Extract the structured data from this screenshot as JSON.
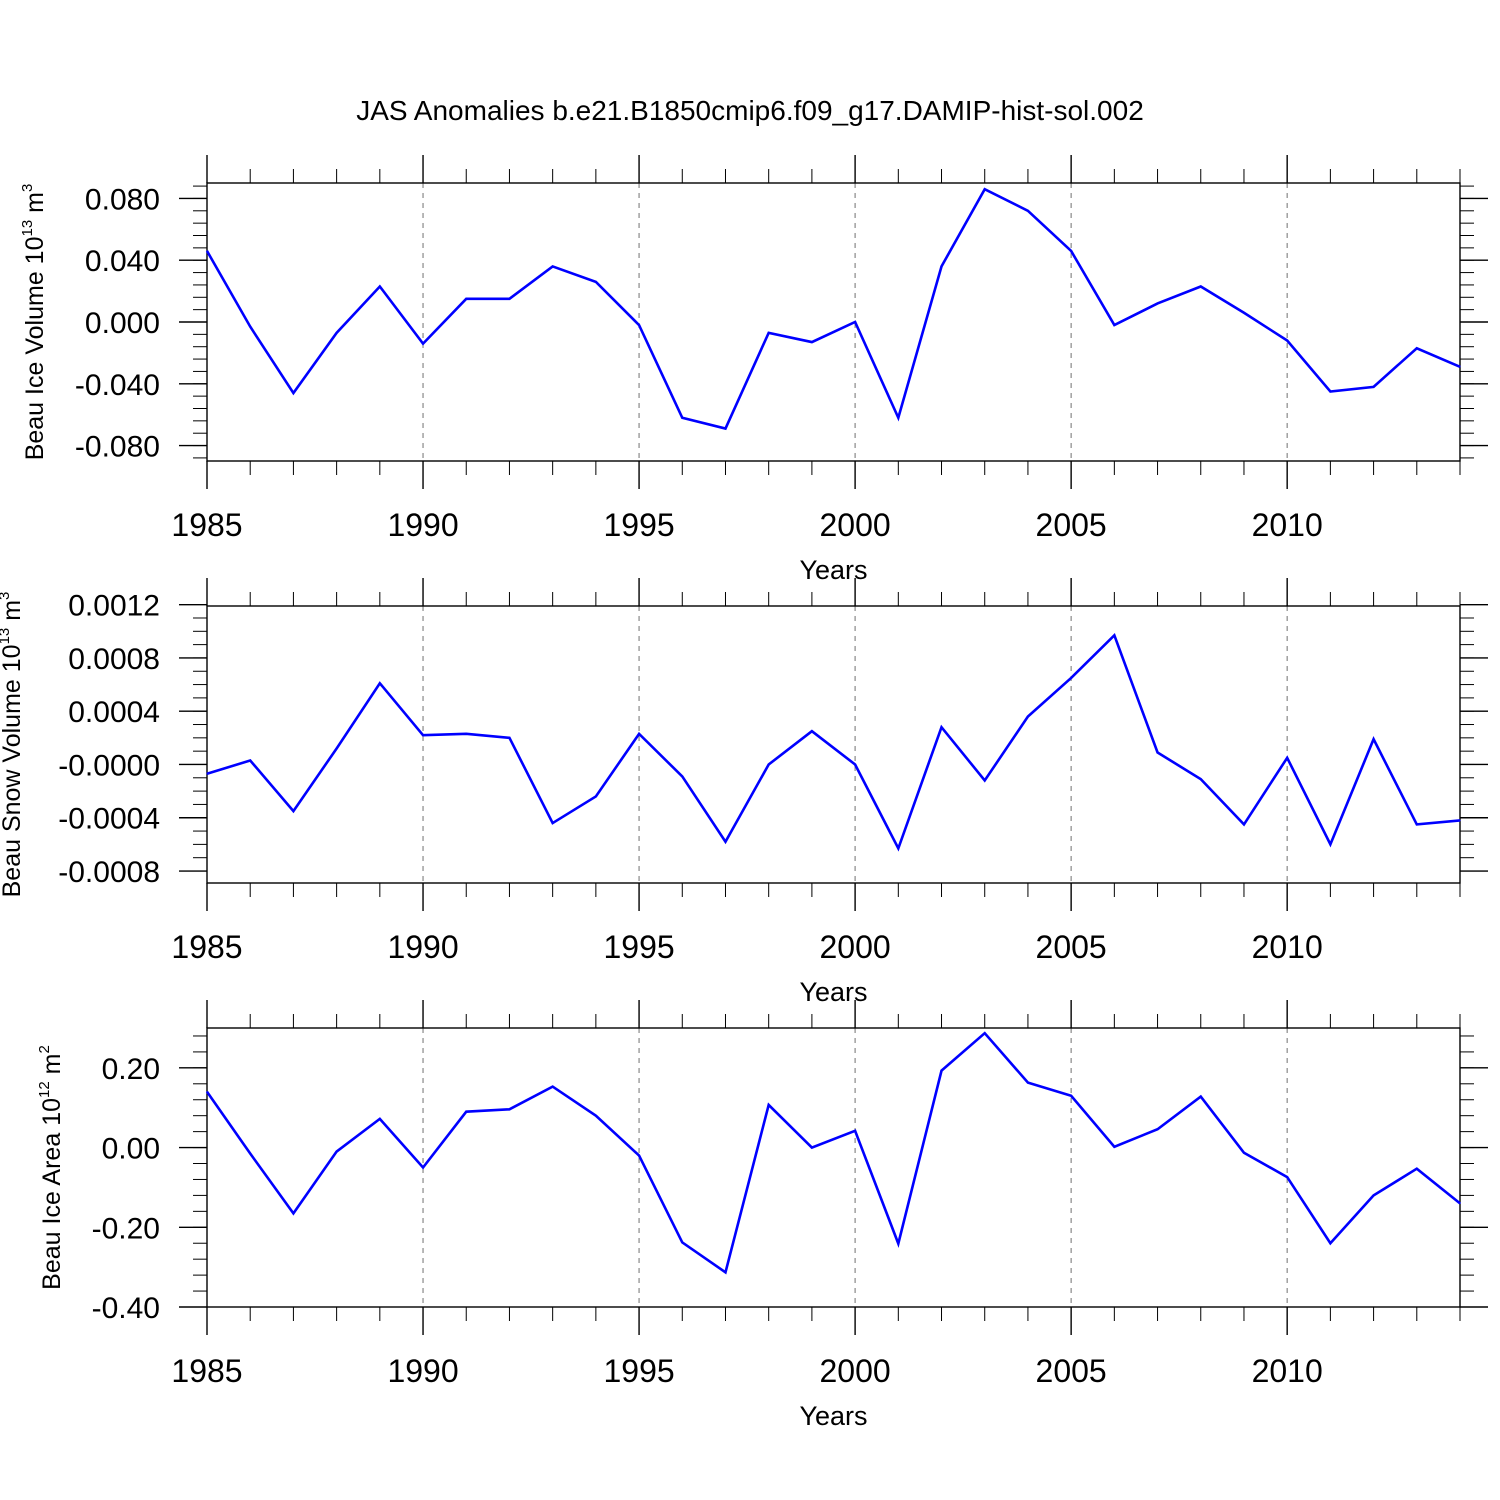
{
  "title": "JAS Anomalies b.e21.B1850cmip6.f09_g17.DAMIP-hist-sol.002",
  "line_color": "#0000ff",
  "chart_data": [
    {
      "type": "line",
      "xlabel": "Years",
      "ylabel": {
        "base": "Beau Ice Volume 10",
        "exp": "13",
        "unit": " m",
        "unit_exp": "3"
      },
      "xlim": [
        1985,
        2014
      ],
      "ylim": [
        -0.09,
        0.09
      ],
      "xticks": [
        1985,
        1990,
        1995,
        2000,
        2005,
        2010
      ],
      "yticks": [
        -0.08,
        -0.04,
        0.0,
        0.04,
        0.08
      ],
      "ytick_labels": [
        "-0.080",
        "-0.040",
        "0.000",
        "0.040",
        "0.080"
      ],
      "yminor_step": 0.008,
      "x": [
        1985,
        1986,
        1987,
        1988,
        1989,
        1990,
        1991,
        1992,
        1993,
        1994,
        1995,
        1996,
        1997,
        1998,
        1999,
        2000,
        2001,
        2002,
        2003,
        2004,
        2005,
        2006,
        2007,
        2008,
        2009,
        2010,
        2011,
        2012,
        2013,
        2014
      ],
      "values": [
        0.046,
        -0.003,
        -0.046,
        -0.007,
        0.023,
        -0.014,
        0.015,
        0.015,
        0.036,
        0.026,
        -0.002,
        -0.062,
        -0.069,
        -0.007,
        -0.013,
        0.0,
        -0.062,
        0.036,
        0.086,
        0.072,
        0.046,
        -0.002,
        0.012,
        0.023,
        0.006,
        -0.012,
        -0.045,
        -0.042,
        -0.017,
        -0.029
      ]
    },
    {
      "type": "line",
      "xlabel": "Years",
      "ylabel": {
        "base": "Beau Snow Volume 10",
        "exp": "13",
        "unit": " m",
        "unit_exp": "3"
      },
      "xlim": [
        1985,
        2014
      ],
      "ylim": [
        -0.00089,
        0.00119
      ],
      "xticks": [
        1985,
        1990,
        1995,
        2000,
        2005,
        2010
      ],
      "yticks": [
        -0.0008,
        -0.0004,
        0.0,
        0.0004,
        0.0008,
        0.0012
      ],
      "ytick_labels": [
        "-0.0008",
        "-0.0004",
        "-0.0000",
        "0.0004",
        "0.0008",
        "0.0012"
      ],
      "yminor_step": 0.0001,
      "x": [
        1985,
        1986,
        1987,
        1988,
        1989,
        1990,
        1991,
        1992,
        1993,
        1994,
        1995,
        1996,
        1997,
        1998,
        1999,
        2000,
        2001,
        2002,
        2003,
        2004,
        2005,
        2006,
        2007,
        2008,
        2009,
        2010,
        2011,
        2012,
        2013,
        2014
      ],
      "values": [
        -7e-05,
        3e-05,
        -0.00035,
        0.00012,
        0.00061,
        0.00022,
        0.00023,
        0.0002,
        -0.00044,
        -0.00024,
        0.00023,
        -9e-05,
        -0.00058,
        0.0,
        0.00025,
        0.0,
        -0.00063,
        0.00028,
        -0.00012,
        0.00036,
        0.00065,
        0.00097,
        9e-05,
        -0.00011,
        -0.00045,
        5e-05,
        -0.0006,
        0.00019,
        -0.00045,
        -0.00042
      ]
    },
    {
      "type": "line",
      "xlabel": "Years",
      "ylabel": {
        "base": "Beau Ice Area 10",
        "exp": "12",
        "unit": " m",
        "unit_exp": "2"
      },
      "xlim": [
        1985,
        2014
      ],
      "ylim": [
        -0.4,
        0.3
      ],
      "xticks": [
        1985,
        1990,
        1995,
        2000,
        2005,
        2010
      ],
      "yticks": [
        -0.4,
        -0.2,
        0.0,
        0.2
      ],
      "ytick_labels": [
        "-0.40",
        "-0.20",
        "0.00",
        "0.20"
      ],
      "yminor_step": 0.04,
      "x": [
        1985,
        1986,
        1987,
        1988,
        1989,
        1990,
        1991,
        1992,
        1993,
        1994,
        1995,
        1996,
        1997,
        1998,
        1999,
        2000,
        2001,
        2002,
        2003,
        2004,
        2005,
        2006,
        2007,
        2008,
        2009,
        2010,
        2011,
        2012,
        2013,
        2014
      ],
      "values": [
        0.14,
        -0.015,
        -0.165,
        -0.01,
        0.072,
        -0.05,
        0.09,
        0.096,
        0.153,
        0.08,
        -0.02,
        -0.238,
        -0.313,
        0.107,
        0.0,
        0.042,
        -0.241,
        0.193,
        0.287,
        0.163,
        0.13,
        0.002,
        0.046,
        0.128,
        -0.013,
        -0.074,
        -0.24,
        -0.12,
        -0.053,
        -0.14
      ]
    }
  ]
}
